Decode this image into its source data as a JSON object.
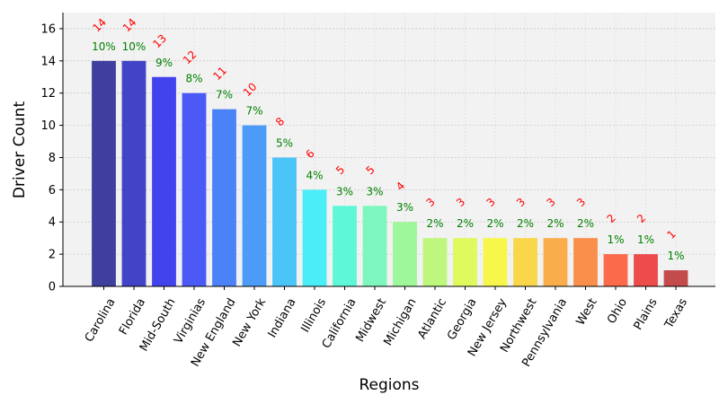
{
  "chart_data": {
    "type": "bar",
    "xlabel": "Regions",
    "ylabel": "Driver Count",
    "ylim": [
      0,
      17
    ],
    "yticks": [
      0,
      2,
      4,
      6,
      8,
      10,
      12,
      14,
      16
    ],
    "grid": true,
    "categories": [
      "Carolina",
      "Florida",
      "Mid-South",
      "Virginias",
      "New England",
      "New York",
      "Indiana",
      "Illinois",
      "California",
      "Midwest",
      "Michigan",
      "Atlantic",
      "Georgia",
      "New Jersey",
      "Northwest",
      "Pennsylvania",
      "West",
      "Ohio",
      "Plains",
      "Texas"
    ],
    "values": [
      14,
      14,
      13,
      12,
      11,
      10,
      8,
      6,
      5,
      5,
      4,
      3,
      3,
      3,
      3,
      3,
      3,
      2,
      2,
      1
    ],
    "count_labels": [
      "14",
      "14",
      "13",
      "12",
      "11",
      "10",
      "8",
      "6",
      "5",
      "5",
      "4",
      "3",
      "3",
      "3",
      "3",
      "3",
      "3",
      "2",
      "2",
      "1"
    ],
    "percent_labels": [
      "10%",
      "10%",
      "9%",
      "8%",
      "7%",
      "7%",
      "5%",
      "4%",
      "3%",
      "3%",
      "3%",
      "2%",
      "2%",
      "2%",
      "2%",
      "2%",
      "2%",
      "1%",
      "1%",
      "1%"
    ],
    "colors": [
      "#3f3f9e",
      "#4343c7",
      "#4343ee",
      "#4b59f7",
      "#4b82f7",
      "#4b9bf7",
      "#4bc4f7",
      "#4bedf7",
      "#5ef7d8",
      "#7df7bd",
      "#9ef79a",
      "#bdf77d",
      "#defa5e",
      "#f7f74b",
      "#fad64b",
      "#faae4b",
      "#fa8f4b",
      "#fa6a4b",
      "#ee4b4b",
      "#c44b4b"
    ],
    "background": "#f2f2f2",
    "count_label_color": "#ff0000",
    "percent_label_color": "#008000"
  }
}
